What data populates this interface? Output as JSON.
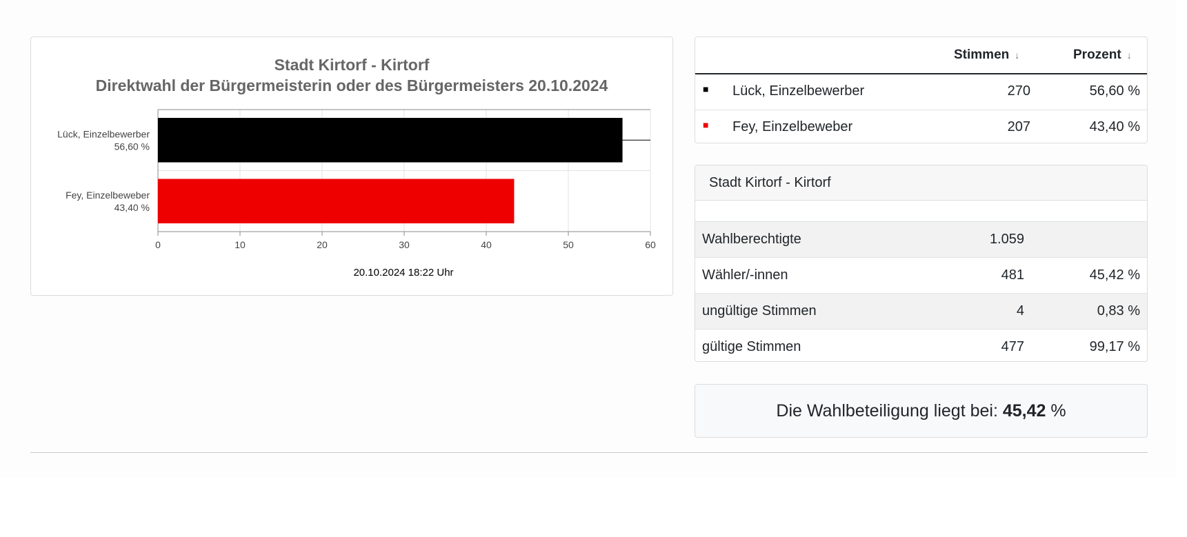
{
  "chart_data": {
    "type": "bar",
    "orientation": "horizontal",
    "title": "Stadt Kirtorf - Kirtorf",
    "subtitle": "Direktwahl der Bürgermeisterin oder des Bürgermeisters 20.10.2024",
    "categories": [
      "Lück, Einzelbewerber",
      "Fey, Einzelbeweber"
    ],
    "category_values_text": [
      "56,60 %",
      "43,40 %"
    ],
    "values": [
      56.6,
      43.4
    ],
    "colors": [
      "#000000",
      "#ee0000"
    ],
    "xlim": [
      0,
      60
    ],
    "xticks": [
      "0",
      "10",
      "20",
      "30",
      "40",
      "50",
      "60"
    ],
    "grid": true,
    "footer": "20.10.2024 18:22 Uhr"
  },
  "candidates_table": {
    "headers": {
      "stimmen": "Stimmen",
      "prozent": "Prozent",
      "sort_icon": "↓"
    },
    "rows": [
      {
        "marker": "■",
        "color": "#000000",
        "name": "Lück, Einzelbewerber",
        "stimmen": "270",
        "prozent": "56,60 %"
      },
      {
        "marker": "■",
        "color": "#ee0000",
        "name": "Fey, Einzelbeweber",
        "stimmen": "207",
        "prozent": "43,40 %"
      }
    ]
  },
  "stats": {
    "title": "Stadt Kirtorf - Kirtorf",
    "rows": [
      {
        "label": "Wahlberechtigte",
        "value": "1.059",
        "percent": ""
      },
      {
        "label": "Wähler/-innen",
        "value": "481",
        "percent": "45,42 %"
      },
      {
        "label": "ungültige Stimmen",
        "value": "4",
        "percent": "0,83 %"
      },
      {
        "label": "gültige Stimmen",
        "value": "477",
        "percent": "99,17 %"
      }
    ]
  },
  "turnout": {
    "prefix": "Die Wahlbeteiligung liegt bei: ",
    "value": "45,42",
    "suffix": " %"
  }
}
